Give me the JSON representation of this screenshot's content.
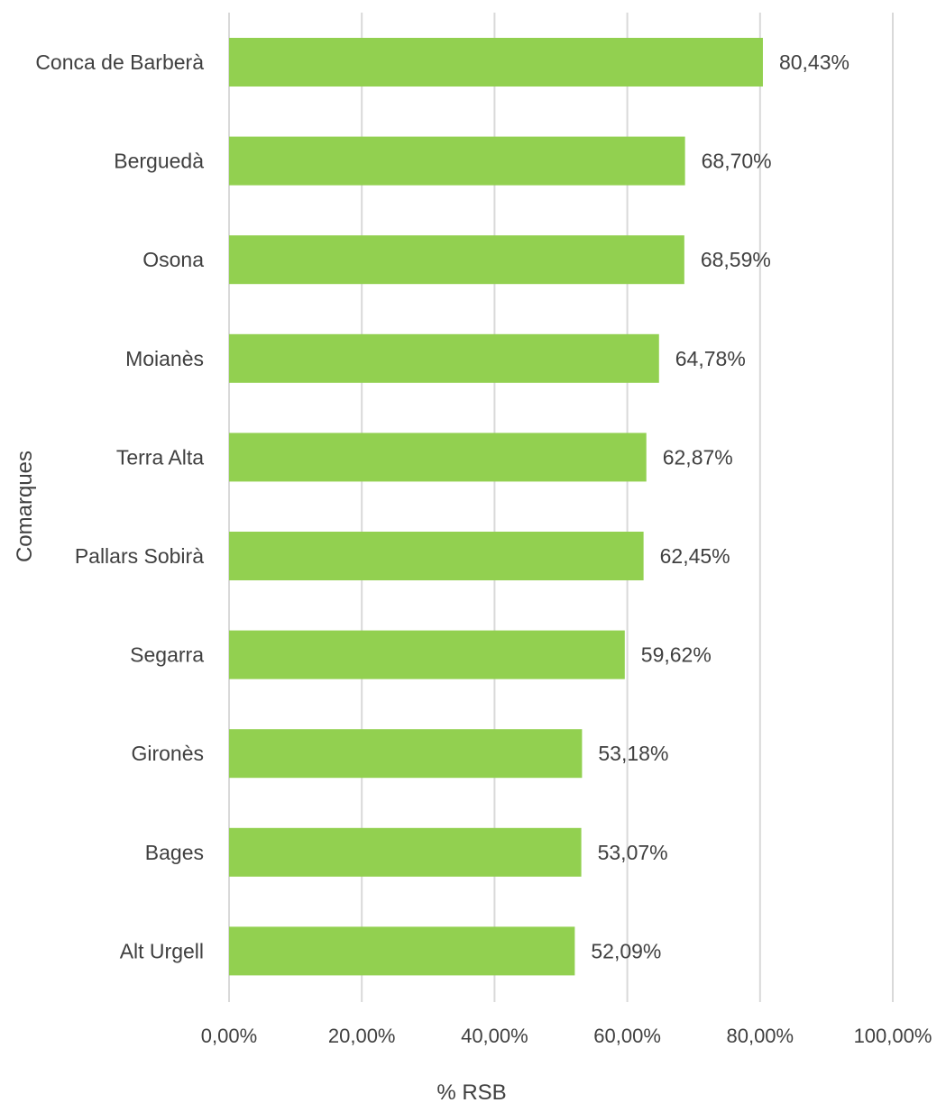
{
  "chart_data": {
    "type": "bar",
    "orientation": "horizontal",
    "categories": [
      "Conca de Barberà",
      "Berguedà",
      "Osona",
      "Moianès",
      "Terra Alta",
      "Pallars Sobirà",
      "Segarra",
      "Gironès",
      "Bages",
      "Alt Urgell"
    ],
    "values": [
      80.43,
      68.7,
      68.59,
      64.78,
      62.87,
      62.45,
      59.62,
      53.18,
      53.07,
      52.09
    ],
    "data_labels": [
      "80,43%",
      "68,70%",
      "68,59%",
      "64,78%",
      "62,87%",
      "62,45%",
      "59,62%",
      "53,18%",
      "53,07%",
      "52,09%"
    ],
    "xlim": [
      0,
      100
    ],
    "x_ticks": [
      0,
      20,
      40,
      60,
      80,
      100
    ],
    "x_tick_labels": [
      "0,00%",
      "20,00%",
      "40,00%",
      "60,00%",
      "80,00%",
      "100,00%"
    ],
    "xlabel": "% RSB",
    "ylabel": "Comarques",
    "title": "",
    "grid": true,
    "legend": "none",
    "bar_color": "#92d050"
  }
}
